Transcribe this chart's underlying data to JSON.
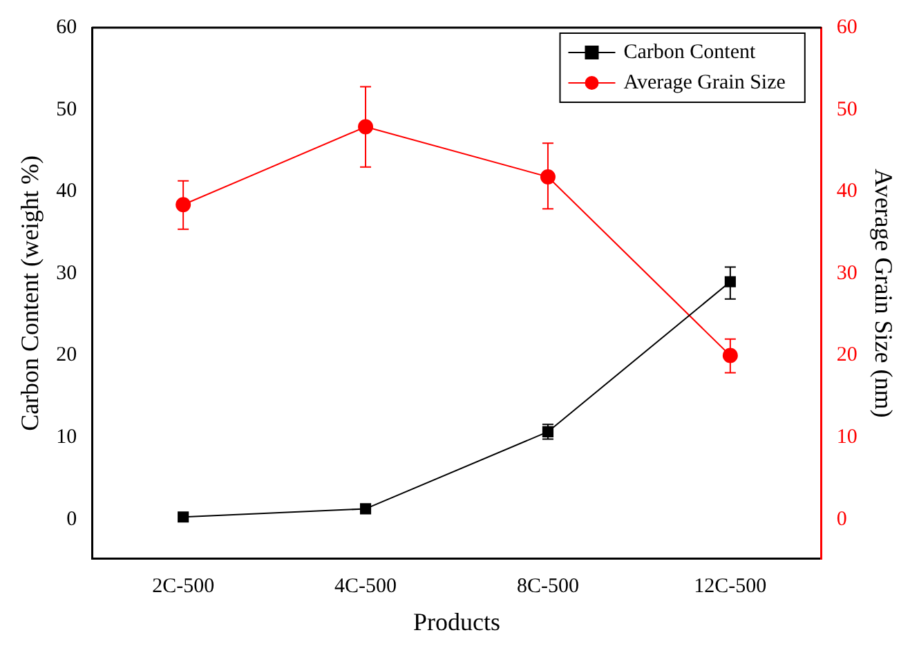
{
  "chart_data": {
    "type": "line",
    "xlabel": "Products",
    "ylabel": "Carbon Content (weight %)",
    "y2label": "Average Grain Size (nm)",
    "categories": [
      "2C-500",
      "4C-500",
      "8C-500",
      "12C-500"
    ],
    "series": [
      {
        "name": "Carbon Content",
        "color": "#000000",
        "marker": "square",
        "values": [
          0.3,
          1.3,
          10.7,
          29
        ],
        "errors": [
          null,
          null,
          [
            9.8,
            11.6
          ],
          [
            26.9,
            30.8
          ]
        ]
      },
      {
        "name": "Average Grain Size",
        "color": "#ff0000",
        "marker": "circle",
        "axis": "y2",
        "values": [
          38.4,
          47.9,
          41.8,
          20
        ],
        "errors": [
          [
            35.4,
            41.3
          ],
          [
            43,
            52.8
          ],
          [
            37.9,
            45.9
          ],
          [
            17.9,
            22
          ]
        ]
      }
    ],
    "ylim": [
      -4.8,
      60
    ],
    "yticks": [
      0,
      10,
      20,
      30,
      40,
      50,
      60
    ],
    "y2lim": [
      -4.8,
      60
    ],
    "y2ticks": [
      0,
      10,
      20,
      30,
      40,
      50,
      60
    ],
    "grid": false,
    "legend": "top right"
  }
}
